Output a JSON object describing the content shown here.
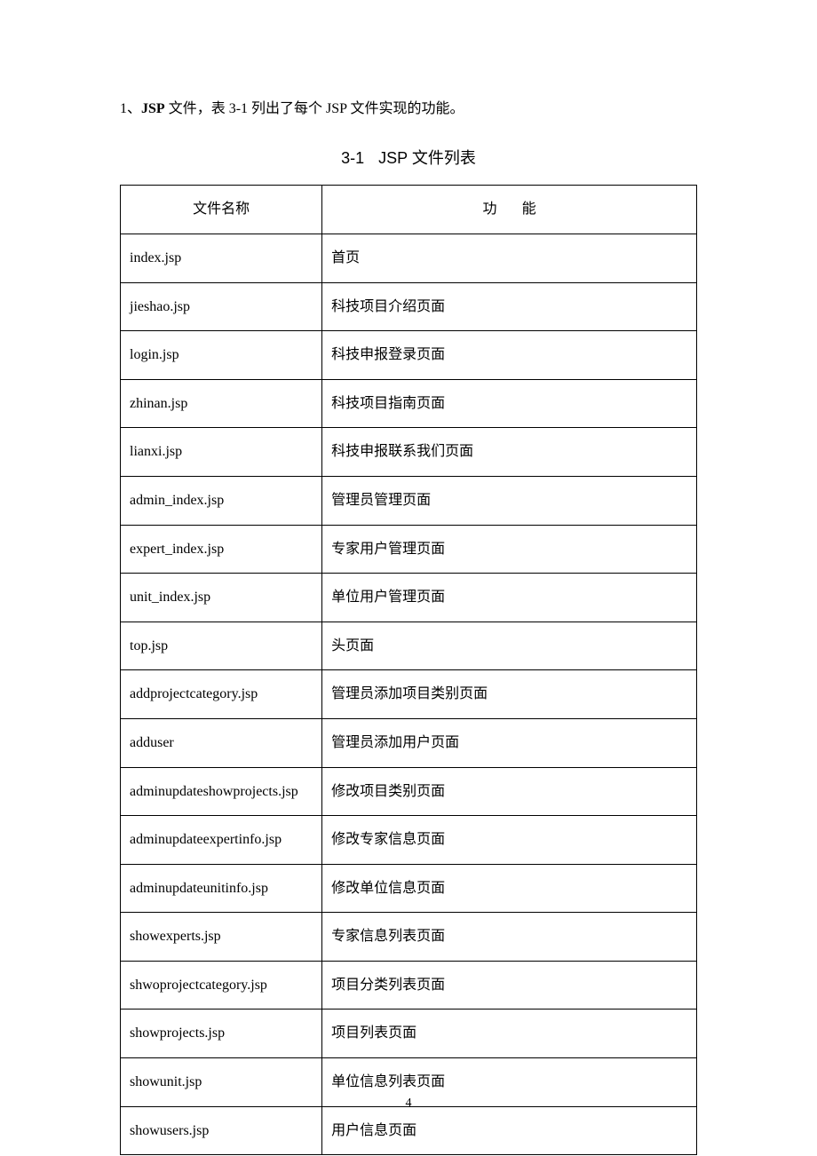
{
  "intro": {
    "prefix": "1、",
    "bold": "JSP",
    "rest": " 文件，表 3-1 列出了每个 JSP 文件实现的功能。"
  },
  "table": {
    "title_num": "3-1",
    "title_text": "JSP 文件列表",
    "columns": {
      "filename": "文件名称",
      "function_a": "功",
      "function_b": "能"
    },
    "rows": [
      {
        "filename": "index.jsp",
        "function": "首页"
      },
      {
        "filename": "jieshao.jsp",
        "function": "科技项目介绍页面"
      },
      {
        "filename": "login.jsp",
        "function": "科技申报登录页面"
      },
      {
        "filename": "zhinan.jsp",
        "function": "科技项目指南页面"
      },
      {
        "filename": "lianxi.jsp",
        "function": "科技申报联系我们页面"
      },
      {
        "filename": "admin_index.jsp",
        "function": "管理员管理页面"
      },
      {
        "filename": "expert_index.jsp",
        "function": "专家用户管理页面"
      },
      {
        "filename": "unit_index.jsp",
        "function": "单位用户管理页面"
      },
      {
        "filename": "top.jsp",
        "function": "头页面"
      },
      {
        "filename": "addprojectcategory.jsp",
        "function": "管理员添加项目类别页面"
      },
      {
        "filename": "adduser",
        "function": "管理员添加用户页面"
      },
      {
        "filename": "adminupdateshowprojects.jsp",
        "function": "修改项目类别页面"
      },
      {
        "filename": "adminupdateexpertinfo.jsp",
        "function": "修改专家信息页面"
      },
      {
        "filename": "adminupdateunitinfo.jsp",
        "function": "修改单位信息页面"
      },
      {
        "filename": "showexperts.jsp",
        "function": "专家信息列表页面"
      },
      {
        "filename": "shwoprojectcategory.jsp",
        "function": "项目分类列表页面"
      },
      {
        "filename": "showprojects.jsp",
        "function": "项目列表页面"
      },
      {
        "filename": "showunit.jsp",
        "function": "单位信息列表页面"
      },
      {
        "filename": "showusers.jsp",
        "function": "用户信息页面"
      }
    ]
  },
  "page_number": "4"
}
